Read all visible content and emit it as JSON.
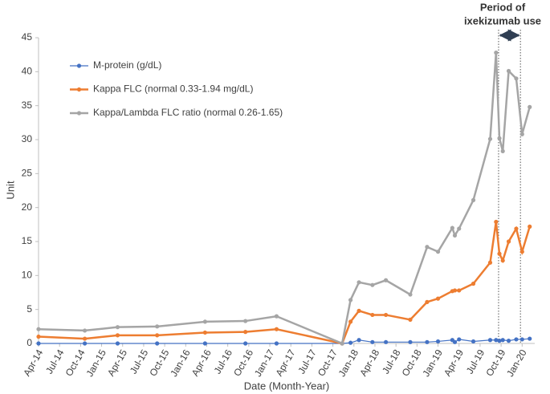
{
  "chart_data": {
    "type": "line",
    "x_label": "Date (Month-Year)",
    "y_label": "Unit",
    "annotation": [
      "Period of",
      "ixekizumab use"
    ],
    "period": [
      2019.72,
      2019.98
    ],
    "x": [
      2014.25,
      2014.8,
      2015.19,
      2015.66,
      2016.23,
      2016.71,
      2017.08,
      2017.86,
      2017.96,
      2018.06,
      2018.22,
      2018.38,
      2018.67,
      2018.87,
      2019.0,
      2019.17,
      2019.2,
      2019.25,
      2019.42,
      2019.62,
      2019.69,
      2019.73,
      2019.77,
      2019.84,
      2019.93,
      2020.0,
      2020.09
    ],
    "series": [
      {
        "name": "M-protein (g/dL)",
        "color": "#4472c4",
        "values": [
          0,
          0,
          0,
          0,
          0,
          0,
          0,
          0,
          0.1,
          0.5,
          0.2,
          0.2,
          0.2,
          0.2,
          0.3,
          0.5,
          0.2,
          0.6,
          0.3,
          0.5,
          0.5,
          0.4,
          0.5,
          0.4,
          0.6,
          0.6,
          0.7
        ]
      },
      {
        "name": "Kappa FLC (normal 0.33-1.94 mg/dL)",
        "color": "#ed7d31",
        "values": [
          1.0,
          0.7,
          1.2,
          1.2,
          1.6,
          1.7,
          2.1,
          0,
          3.2,
          4.8,
          4.2,
          4.2,
          3.5,
          6.1,
          6.6,
          7.7,
          7.8,
          7.8,
          8.8,
          11.9,
          17.9,
          13.2,
          12.2,
          15.0,
          16.9,
          13.5,
          17.2
        ]
      },
      {
        "name": "Kappa/Lambda FLC ratio (normal 0.26-1.65)",
        "color": "#a5a5a5",
        "values": [
          2.1,
          1.9,
          2.4,
          2.5,
          3.2,
          3.3,
          4.0,
          0,
          6.4,
          9.0,
          8.6,
          9.3,
          7.2,
          14.2,
          13.5,
          17.0,
          15.9,
          16.9,
          21.1,
          30.1,
          42.8,
          30.2,
          28.3,
          40.1,
          39.0,
          30.8,
          34.8
        ]
      }
    ],
    "xlim": [
      2014.25,
      2020.15
    ],
    "xticks": [
      {
        "value": 2014.25,
        "label": "Apr-14"
      },
      {
        "value": 2014.5,
        "label": "Jul-14"
      },
      {
        "value": 2014.75,
        "label": "Oct-14"
      },
      {
        "value": 2015.0,
        "label": "Jan-15"
      },
      {
        "value": 2015.25,
        "label": "Apr-15"
      },
      {
        "value": 2015.5,
        "label": "Jul-15"
      },
      {
        "value": 2015.75,
        "label": "Oct-15"
      },
      {
        "value": 2016.0,
        "label": "Jan-16"
      },
      {
        "value": 2016.25,
        "label": "Apr-16"
      },
      {
        "value": 2016.5,
        "label": "Jul-16"
      },
      {
        "value": 2016.75,
        "label": "Oct-16"
      },
      {
        "value": 2017.0,
        "label": "Jan-17"
      },
      {
        "value": 2017.25,
        "label": "Apr-17"
      },
      {
        "value": 2017.5,
        "label": "Jul-17"
      },
      {
        "value": 2017.75,
        "label": "Oct-17"
      },
      {
        "value": 2018.0,
        "label": "Jan-18"
      },
      {
        "value": 2018.25,
        "label": "Apr-18"
      },
      {
        "value": 2018.5,
        "label": "Jul-18"
      },
      {
        "value": 2018.75,
        "label": "Oct-18"
      },
      {
        "value": 2019.0,
        "label": "Jan-19"
      },
      {
        "value": 2019.25,
        "label": "Apr-19"
      },
      {
        "value": 2019.5,
        "label": "Jul-19"
      },
      {
        "value": 2019.75,
        "label": "Oct-19"
      },
      {
        "value": 2020.0,
        "label": "Jan-20"
      }
    ],
    "ylim": [
      0,
      45
    ],
    "yticks": [
      0,
      5,
      10,
      15,
      20,
      25,
      30,
      35,
      40,
      45
    ],
    "legend": "top-left",
    "grid": false
  }
}
